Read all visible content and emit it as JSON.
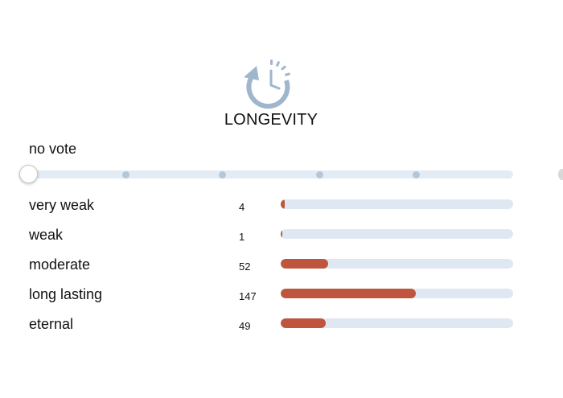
{
  "header": {
    "icon": "clock-refresh-icon",
    "title": "LONGEVITY"
  },
  "vote": {
    "label": "no vote",
    "selected_step": 0,
    "steps": 6
  },
  "results": {
    "max_votes": 147,
    "rows": [
      {
        "label": "very weak",
        "count": "4",
        "value": 4
      },
      {
        "label": "weak",
        "count": "1",
        "value": 1
      },
      {
        "label": "moderate",
        "count": "52",
        "value": 52
      },
      {
        "label": "long lasting",
        "count": "147",
        "value": 147
      },
      {
        "label": "eternal",
        "count": "49",
        "value": 49
      }
    ]
  },
  "colors": {
    "accent": "#c0553f",
    "track": "#dfe8f2",
    "icon": "#9fb6cd",
    "text": "#111111"
  }
}
